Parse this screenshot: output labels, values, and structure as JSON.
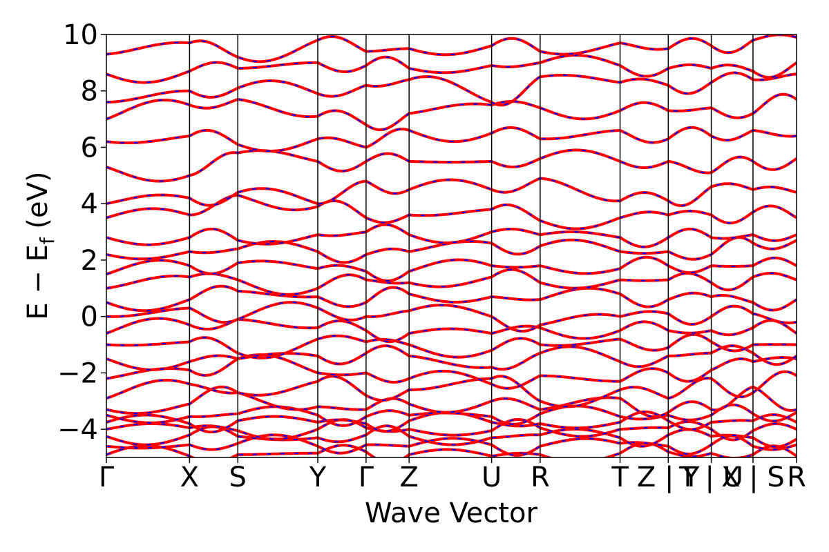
{
  "chart_data": {
    "type": "line",
    "title": "",
    "xlabel": "Wave Vector",
    "ylabel": "E − E",
    "ylabel_subscript": "f",
    "ylabel_unit": " (eV)",
    "ylim": [
      -5,
      10
    ],
    "yticks": [
      10,
      8,
      6,
      4,
      2,
      0,
      -2,
      -4
    ],
    "ytick_labels": [
      "10",
      "8",
      "6",
      "4",
      "2",
      "0",
      "−2",
      "−4"
    ],
    "x_points": [
      {
        "label": "Γ",
        "x": 0.0
      },
      {
        "label": "X",
        "x": 0.1205
      },
      {
        "label": "S",
        "x": 0.1904
      },
      {
        "label": "Y",
        "x": 0.3063
      },
      {
        "label": "Γ",
        "x": 0.3763
      },
      {
        "label": "Z",
        "x": 0.4386
      },
      {
        "label": "U",
        "x": 0.5582
      },
      {
        "label": "R",
        "x": 0.6285
      },
      {
        "label": "T",
        "x": 0.7443
      },
      {
        "label": "Z | Y",
        "x": 0.8141
      },
      {
        "label": "T | U",
        "x": 0.8765
      },
      {
        "label": "X | S",
        "x": 0.9369
      },
      {
        "label": "R",
        "x": 1.0
      }
    ],
    "extra_lines_x": [
      0.8141,
      0.8765,
      0.9369
    ],
    "xlim": [
      0,
      1
    ],
    "grid": false,
    "legend": false,
    "series": [
      {
        "style": "solid",
        "color": "#ff0000"
      },
      {
        "style": "dashed",
        "color": "#0000ff"
      }
    ],
    "band_nodes": [
      [
        -4.9,
        -4.95,
        -4.9,
        -4.85,
        -4.8,
        -4.9,
        -4.95,
        -4.9,
        -4.85,
        -4.8,
        -4.85,
        -4.9,
        -4.95
      ],
      [
        -4.6,
        -4.55,
        -4.5,
        -4.6,
        -4.55,
        -4.6,
        -4.55,
        -4.6,
        -4.5,
        -4.6,
        -4.55,
        -4.6,
        -4.55
      ],
      [
        -4.25,
        -4.2,
        -4.25,
        -4.3,
        -4.2,
        -4.25,
        -4.3,
        -4.2,
        -4.3,
        -4.2,
        -4.25,
        -4.3,
        -4.35
      ],
      [
        -4.0,
        -3.95,
        -4.05,
        -4.0,
        -3.95,
        -4.0,
        -4.05,
        -3.95,
        -4.0,
        -3.95,
        -4.0,
        -4.05,
        -4.0
      ],
      [
        -3.75,
        -3.8,
        -3.7,
        -3.75,
        -3.8,
        -3.7,
        -3.75,
        -3.8,
        -3.75,
        -3.7,
        -3.75,
        -3.7,
        -3.75
      ],
      [
        -3.5,
        -3.55,
        -3.45,
        -3.5,
        -3.55,
        -3.5,
        -3.55,
        -3.45,
        -3.55,
        -3.5,
        -3.5,
        -3.45,
        -3.4
      ],
      [
        -3.3,
        -3.1,
        -2.7,
        -3.2,
        -3.3,
        -3.1,
        -3.0,
        -3.3,
        -2.9,
        -3.4,
        -3.3,
        -2.5,
        -3.3
      ],
      [
        -2.9,
        -2.4,
        -2.7,
        -2.3,
        -2.8,
        -2.6,
        -2.2,
        -3.0,
        -2.6,
        -2.9,
        -2.2,
        -2.7,
        -2.1
      ],
      [
        -2.2,
        -1.9,
        -1.5,
        -2.0,
        -2.0,
        -2.2,
        -2.4,
        -2.1,
        -2.3,
        -2.0,
        -1.9,
        -1.6,
        -1.5
      ],
      [
        -1.5,
        -1.6,
        -1.5,
        -1.4,
        -1.3,
        -1.4,
        -1.8,
        -1.3,
        -1.6,
        -1.4,
        -1.3,
        -1.3,
        -1.4
      ],
      [
        -1.0,
        -0.9,
        -1.3,
        -0.8,
        -0.9,
        -1.0,
        -1.2,
        -1.0,
        -0.8,
        -1.1,
        -0.9,
        -1.0,
        -1.0
      ],
      [
        -0.6,
        -0.3,
        -0.1,
        -0.4,
        -0.5,
        -0.6,
        -0.6,
        -0.4,
        -0.5,
        -0.5,
        -0.5,
        -0.4,
        -0.6
      ],
      [
        0.0,
        0.3,
        -0.1,
        0.3,
        0.0,
        0.2,
        0.0,
        -0.3,
        0.0,
        0.1,
        0.0,
        0.1,
        -0.2
      ],
      [
        0.5,
        0.6,
        0.9,
        0.7,
        0.5,
        0.8,
        0.7,
        0.6,
        0.8,
        0.6,
        0.7,
        0.5,
        0.6
      ],
      [
        1.0,
        1.4,
        1.3,
        1.0,
        1.3,
        1.2,
        1.4,
        1.2,
        1.3,
        1.3,
        1.2,
        1.4,
        1.3
      ],
      [
        1.5,
        1.8,
        1.9,
        1.7,
        1.6,
        1.6,
        1.8,
        1.8,
        1.7,
        1.8,
        1.8,
        1.8,
        1.8
      ],
      [
        2.2,
        2.3,
        2.4,
        2.3,
        2.2,
        2.3,
        2.6,
        2.5,
        2.3,
        2.3,
        2.2,
        2.6,
        2.7
      ],
      [
        2.8,
        2.8,
        2.7,
        2.9,
        3.0,
        2.9,
        3.0,
        2.9,
        2.8,
        2.8,
        2.8,
        2.9,
        2.9
      ],
      [
        3.5,
        3.6,
        4.3,
        3.9,
        3.5,
        3.6,
        3.8,
        3.4,
        3.5,
        3.6,
        3.6,
        3.7,
        3.5
      ],
      [
        4.0,
        4.2,
        4.4,
        4.0,
        4.8,
        4.5,
        4.5,
        4.9,
        4.1,
        4.1,
        4.6,
        4.5,
        4.4
      ],
      [
        5.3,
        5.0,
        5.8,
        5.5,
        5.5,
        5.5,
        5.5,
        5.6,
        5.5,
        5.5,
        5.1,
        5.5,
        5.6
      ],
      [
        6.2,
        6.4,
        6.1,
        6.3,
        6.0,
        6.6,
        6.5,
        6.3,
        6.6,
        6.3,
        6.4,
        6.6,
        6.4
      ],
      [
        7.0,
        7.5,
        7.7,
        7.1,
        6.8,
        7.2,
        7.5,
        7.4,
        7.3,
        7.3,
        7.4,
        7.2,
        7.7
      ],
      [
        7.6,
        8.0,
        8.1,
        7.9,
        8.2,
        8.4,
        7.6,
        8.5,
        8.3,
        8.2,
        8.3,
        8.4,
        8.6
      ],
      [
        8.6,
        8.7,
        8.8,
        9.0,
        8.9,
        8.8,
        8.9,
        9.0,
        8.9,
        8.8,
        8.8,
        8.7,
        9.0
      ],
      [
        9.3,
        9.7,
        9.2,
        9.8,
        9.4,
        9.5,
        9.6,
        9.4,
        9.7,
        9.5,
        9.6,
        9.8,
        9.9
      ]
    ]
  }
}
